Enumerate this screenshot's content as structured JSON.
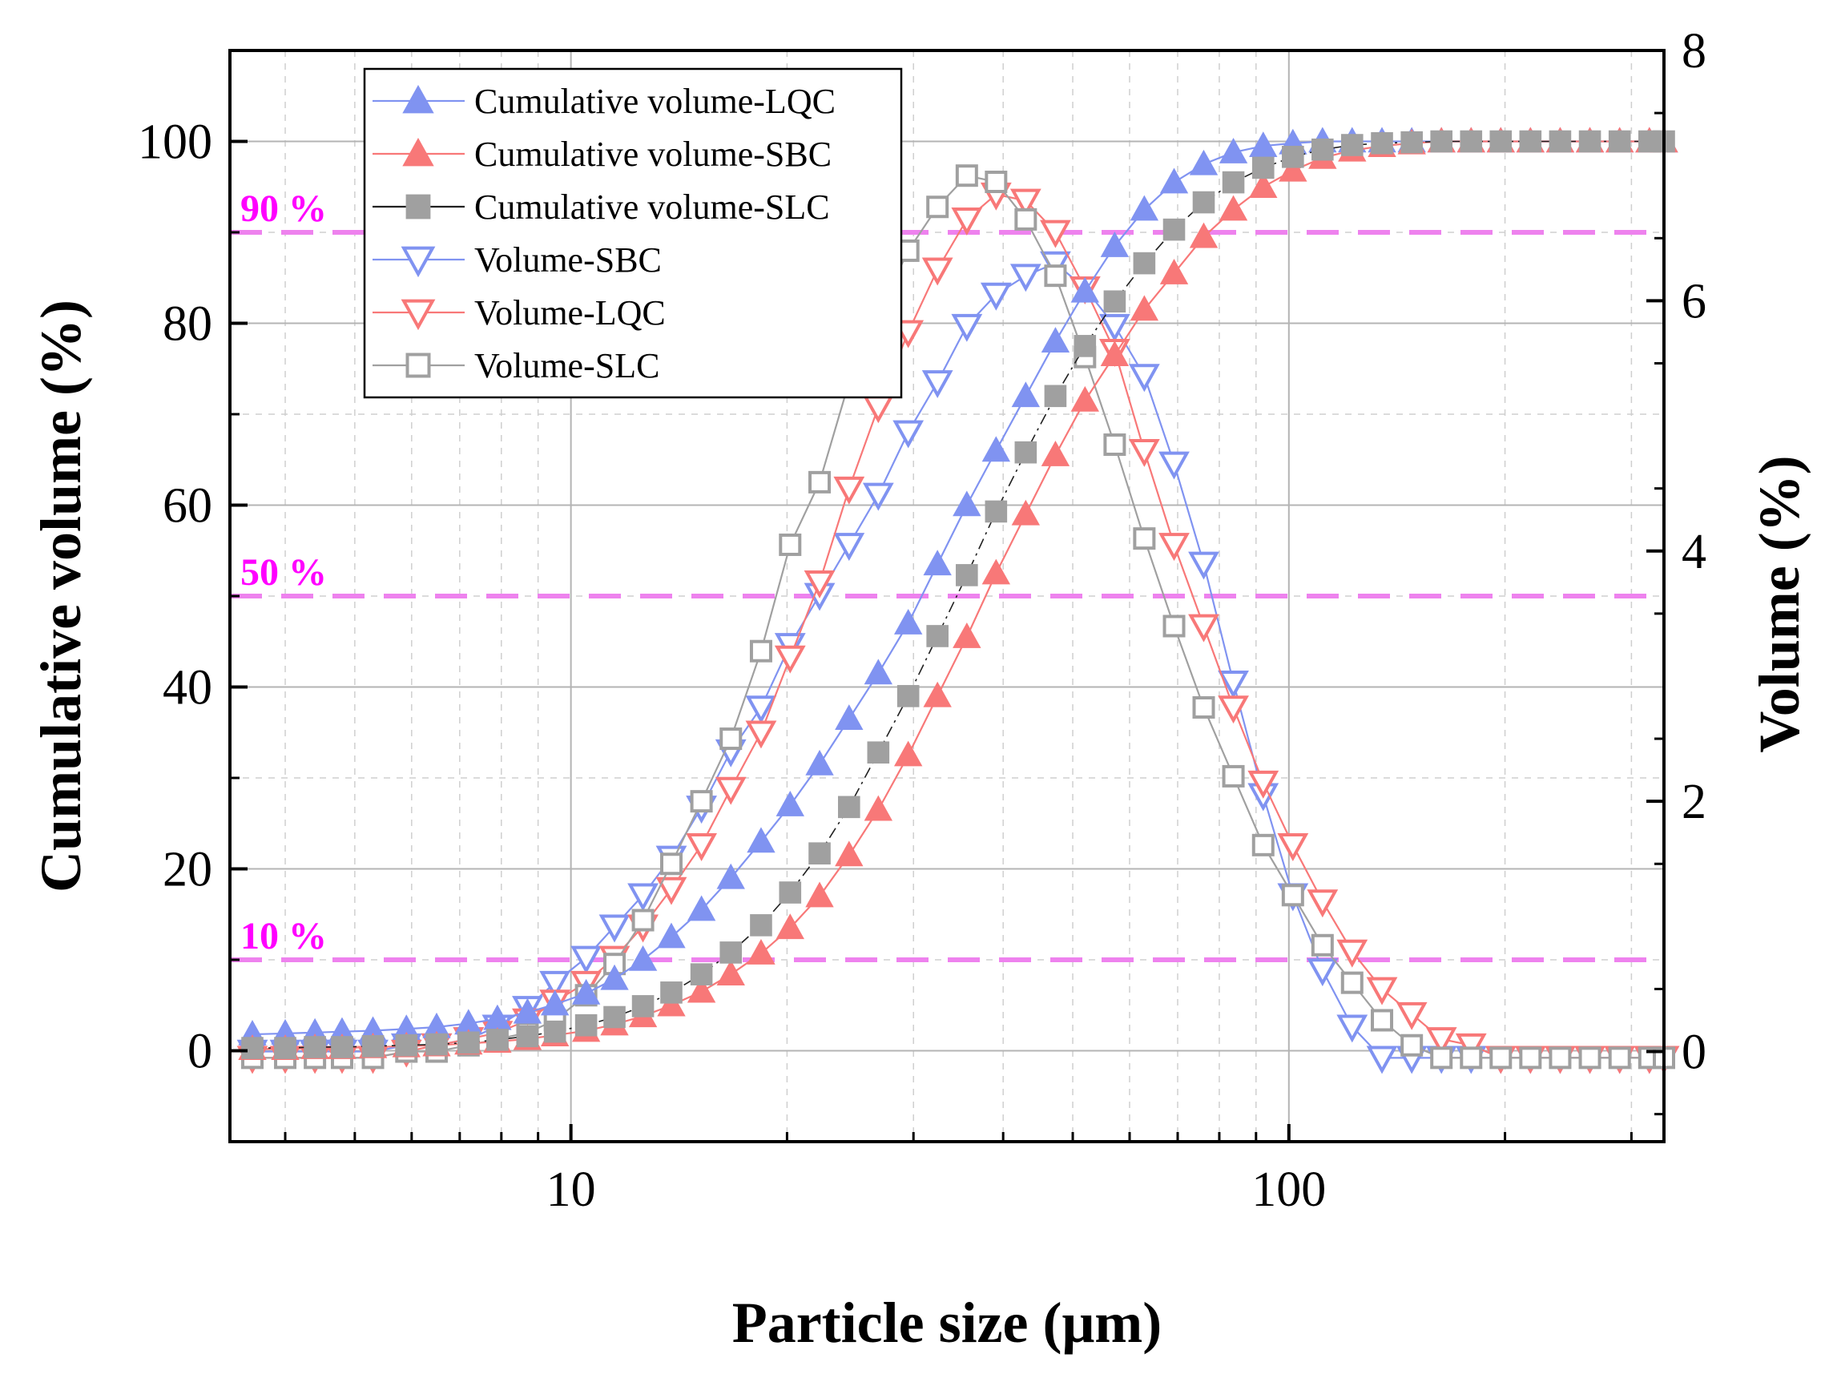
{
  "chart_data": {
    "type": "scatter",
    "xlabel": "Particle size (μm)",
    "ylabel": "Cumulative volume (%)",
    "y2label": "Volume (%)",
    "x_scale": "log",
    "xlim": [
      3.35,
      333
    ],
    "ylim": [
      -10,
      110
    ],
    "y2lim": [
      -0.72,
      8
    ],
    "x_ticks": [
      10,
      100
    ],
    "x_tick_labels": [
      "10",
      "100"
    ],
    "y_ticks": [
      0,
      20,
      40,
      60,
      80,
      100
    ],
    "y_tick_labels": [
      "0",
      "20",
      "40",
      "60",
      "80",
      "100"
    ],
    "y2_ticks": [
      0,
      2,
      4,
      6,
      8
    ],
    "y2_tick_labels": [
      "0",
      "2",
      "4",
      "6",
      "8"
    ],
    "grid": true,
    "legend_position": "top-left",
    "reference_lines": [
      {
        "y": 90,
        "label": "90 %"
      },
      {
        "y": 50,
        "label": "50 %"
      },
      {
        "y": 10,
        "label": "10 %"
      }
    ],
    "x": [
      3.6,
      4.0,
      4.4,
      4.8,
      5.3,
      5.9,
      6.5,
      7.2,
      7.9,
      8.7,
      9.5,
      10.5,
      11.5,
      12.6,
      13.8,
      15.2,
      16.7,
      18.4,
      20.2,
      22.2,
      24.4,
      26.8,
      29.5,
      32.4,
      35.6,
      39.1,
      43.0,
      47.3,
      52.0,
      57.2,
      62.9,
      69.2,
      76.1,
      83.7,
      92.1,
      101.3,
      111.4,
      122.5,
      134.8,
      148.3,
      163.1,
      179.4,
      197.3,
      217.0,
      238.7,
      262.6,
      288.9,
      317.8,
      333.0
    ],
    "series": [
      {
        "name": "Cumulative volume-LQC",
        "axis": "left",
        "marker": "triangle-up-filled",
        "color": "#8093f1",
        "values": [
          1.8,
          1.9,
          2.0,
          2.1,
          2.2,
          2.4,
          2.6,
          3.0,
          3.5,
          4.2,
          5.1,
          6.3,
          7.9,
          10.0,
          12.5,
          15.5,
          19.0,
          23.0,
          27.0,
          31.5,
          36.5,
          41.5,
          47.0,
          53.5,
          60.0,
          66.0,
          72.0,
          78.0,
          83.5,
          88.5,
          92.5,
          95.5,
          97.5,
          98.8,
          99.5,
          99.8,
          100.0,
          100.0,
          100.0,
          100.0,
          100.0,
          100.0,
          100.0,
          100.0,
          100.0,
          100.0,
          100.0,
          100.0,
          100.0
        ]
      },
      {
        "name": "Cumulative volume-SBC",
        "axis": "left",
        "marker": "triangle-up-filled",
        "color": "#f87878",
        "values": [
          0.2,
          0.2,
          0.3,
          0.3,
          0.4,
          0.5,
          0.6,
          0.8,
          1.0,
          1.3,
          1.7,
          2.2,
          2.9,
          3.8,
          5.0,
          6.5,
          8.4,
          10.7,
          13.5,
          17.0,
          21.5,
          26.5,
          32.5,
          39.0,
          45.5,
          52.5,
          59.0,
          65.5,
          71.5,
          76.5,
          81.5,
          85.5,
          89.5,
          92.5,
          95.0,
          96.8,
          98.2,
          99.0,
          99.5,
          99.8,
          100.0,
          100.0,
          100.0,
          100.0,
          100.0,
          100.0,
          100.0,
          100.0,
          100.0
        ]
      },
      {
        "name": "Cumulative volume-SLC",
        "axis": "left",
        "marker": "square-filled",
        "color": "#a0a0a0",
        "values": [
          0.3,
          0.3,
          0.4,
          0.4,
          0.5,
          0.6,
          0.7,
          0.9,
          1.2,
          1.6,
          2.1,
          2.8,
          3.7,
          4.9,
          6.4,
          8.4,
          10.8,
          13.8,
          17.4,
          21.7,
          26.8,
          32.8,
          39.0,
          45.6,
          52.3,
          59.3,
          65.8,
          72.0,
          77.5,
          82.4,
          86.6,
          90.3,
          93.3,
          95.5,
          97.1,
          98.3,
          99.1,
          99.6,
          99.8,
          99.9,
          100.0,
          100.0,
          100.0,
          100.0,
          100.0,
          100.0,
          100.0,
          100.0,
          100.0
        ]
      },
      {
        "name": "Volume-SBC",
        "axis": "right",
        "marker": "triangle-down-open",
        "color": "#8093f1",
        "values": [
          0.0,
          0.0,
          0.0,
          0.0,
          0.0,
          0.05,
          0.05,
          0.1,
          0.2,
          0.35,
          0.55,
          0.75,
          1.0,
          1.25,
          1.55,
          1.95,
          2.4,
          2.75,
          3.25,
          3.65,
          4.05,
          4.45,
          4.95,
          5.35,
          5.8,
          6.05,
          6.2,
          6.3,
          6.1,
          5.8,
          5.4,
          4.7,
          3.9,
          2.95,
          2.05,
          1.25,
          0.65,
          0.2,
          -0.05,
          -0.05,
          -0.05,
          -0.05,
          -0.05,
          -0.05,
          -0.05,
          -0.05,
          -0.05,
          -0.05,
          -0.05
        ]
      },
      {
        "name": "Volume-LQC",
        "axis": "right",
        "marker": "triangle-down-open",
        "color": "#f87878",
        "values": [
          -0.05,
          -0.05,
          -0.05,
          -0.05,
          -0.05,
          0.0,
          0.05,
          0.1,
          0.15,
          0.25,
          0.4,
          0.55,
          0.75,
          1.0,
          1.3,
          1.65,
          2.1,
          2.55,
          3.15,
          3.75,
          4.5,
          5.15,
          5.75,
          6.25,
          6.65,
          6.85,
          6.8,
          6.55,
          6.1,
          5.6,
          4.8,
          4.05,
          3.4,
          2.75,
          2.15,
          1.65,
          1.2,
          0.8,
          0.5,
          0.3,
          0.1,
          0.05,
          -0.05,
          -0.05,
          -0.05,
          -0.05,
          -0.05,
          -0.05,
          -0.05
        ]
      },
      {
        "name": "Volume-SLC",
        "axis": "right",
        "marker": "square-open",
        "color": "#a0a0a0",
        "values": [
          -0.05,
          -0.05,
          -0.05,
          -0.05,
          -0.05,
          0.0,
          0.0,
          0.05,
          0.1,
          0.15,
          0.25,
          0.45,
          0.7,
          1.05,
          1.5,
          2.0,
          2.5,
          3.2,
          4.05,
          4.55,
          5.35,
          5.9,
          6.4,
          6.75,
          7.0,
          6.95,
          6.65,
          6.2,
          5.55,
          4.85,
          4.1,
          3.4,
          2.75,
          2.2,
          1.65,
          1.25,
          0.85,
          0.55,
          0.25,
          0.05,
          -0.05,
          -0.05,
          -0.05,
          -0.05,
          -0.05,
          -0.05,
          -0.05,
          -0.05,
          -0.05
        ]
      }
    ],
    "colors": {
      "reference_line": "#ee82ee",
      "reference_label": "#ff00ff",
      "grid_major": "#b4b4b4",
      "grid_minor": "#cfcfcf"
    }
  }
}
